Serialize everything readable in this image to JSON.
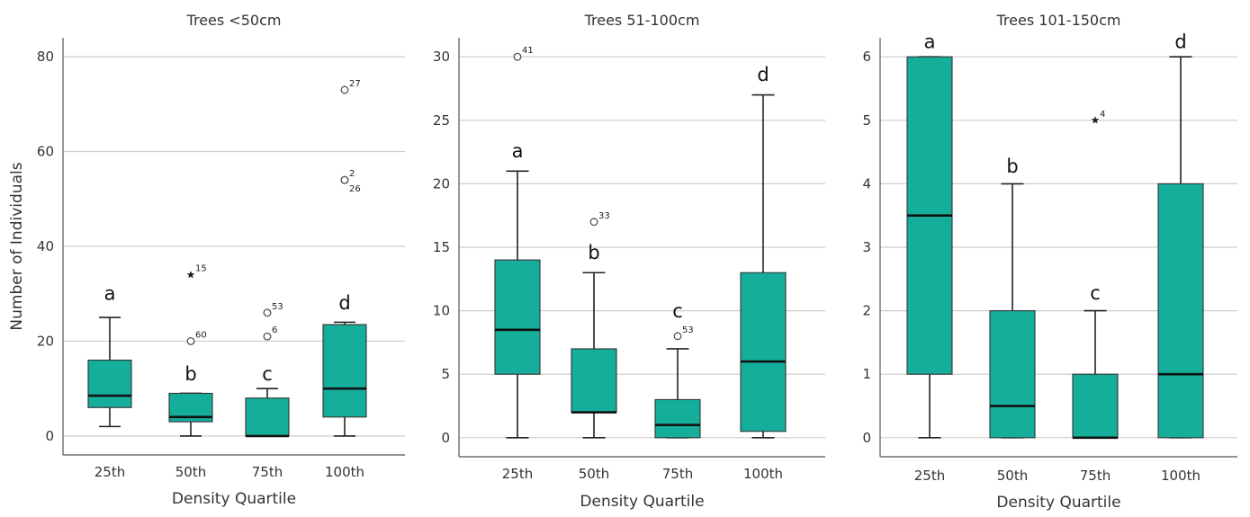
{
  "colors": {
    "box_fill": "#14ae9a",
    "grid": "#cccccc",
    "axis": "#555555"
  },
  "chart_data": [
    {
      "type": "box",
      "title": "Trees <50cm",
      "xlabel": "Density Quartile",
      "ylabel": "Number of Individuals",
      "categories": [
        "25th",
        "50th",
        "75th",
        "100th"
      ],
      "ylim": [
        -4,
        84
      ],
      "yticks": [
        0,
        20,
        40,
        60,
        80
      ],
      "grid": true,
      "boxes": [
        {
          "whisker_low": 2,
          "q1": 6,
          "median": 8.5,
          "q3": 16,
          "whisker_high": 25,
          "letter": "a",
          "letter_y": 28,
          "outliers": []
        },
        {
          "whisker_low": 0,
          "q1": 3,
          "median": 4,
          "q3": 9,
          "whisker_high": 9,
          "letter": "b",
          "letter_y": 11,
          "outliers": [
            {
              "value": 34,
              "label": "15",
              "symbol": "star"
            },
            {
              "value": 20,
              "label": "60",
              "symbol": "circle"
            }
          ]
        },
        {
          "whisker_low": 0,
          "q1": 0,
          "median": 0,
          "q3": 8,
          "whisker_high": 10,
          "letter": "c",
          "letter_y": 11,
          "outliers": [
            {
              "value": 26,
              "label": "53",
              "symbol": "circle"
            },
            {
              "value": 21,
              "label": "6",
              "symbol": "circle"
            }
          ]
        },
        {
          "whisker_low": 0,
          "q1": 4,
          "median": 10,
          "q3": 23.5,
          "whisker_high": 24,
          "letter": "d",
          "letter_y": 26,
          "outliers": [
            {
              "value": 73,
              "label": "27",
              "symbol": "circle"
            },
            {
              "value": 54,
              "label": "2",
              "symbol": "circle"
            },
            {
              "value": 54,
              "label": "26",
              "symbol": "circle",
              "label_below": true
            }
          ]
        }
      ]
    },
    {
      "type": "box",
      "title": "Trees 51-100cm",
      "xlabel": "Density Quartile",
      "ylabel": "",
      "categories": [
        "25th",
        "50th",
        "75th",
        "100th"
      ],
      "ylim": [
        -1.5,
        31.5
      ],
      "yticks": [
        0,
        5,
        10,
        15,
        20,
        25,
        30
      ],
      "grid": true,
      "boxes": [
        {
          "whisker_low": 0,
          "q1": 5,
          "median": 8.5,
          "q3": 14,
          "whisker_high": 21,
          "letter": "a",
          "letter_y": 21.8,
          "outliers": [
            {
              "value": 30,
              "label": "41",
              "symbol": "circle"
            }
          ]
        },
        {
          "whisker_low": 0,
          "q1": 2,
          "median": 2,
          "q3": 7,
          "whisker_high": 13,
          "letter": "b",
          "letter_y": 13.8,
          "outliers": [
            {
              "value": 17,
              "label": "33",
              "symbol": "circle"
            }
          ]
        },
        {
          "whisker_low": 0,
          "q1": 0,
          "median": 1,
          "q3": 3,
          "whisker_high": 7,
          "letter": "c",
          "letter_y": 9.2,
          "outliers": [
            {
              "value": 8,
              "label": "53",
              "symbol": "circle"
            }
          ]
        },
        {
          "whisker_low": 0,
          "q1": 0.5,
          "median": 6,
          "q3": 13,
          "whisker_high": 27,
          "letter": "d",
          "letter_y": 27.8,
          "outliers": []
        }
      ]
    },
    {
      "type": "box",
      "title": "Trees 101-150cm",
      "xlabel": "Density Quartile",
      "ylabel": "",
      "categories": [
        "25th",
        "50th",
        "75th",
        "100th"
      ],
      "ylim": [
        -0.3,
        6.3
      ],
      "yticks": [
        0,
        1,
        2,
        3,
        4,
        5,
        6
      ],
      "grid": true,
      "boxes": [
        {
          "whisker_low": 0,
          "q1": 1,
          "median": 3.5,
          "q3": 6,
          "whisker_high": 6,
          "letter": "a",
          "letter_y": 6.08,
          "outliers": []
        },
        {
          "whisker_low": 0,
          "q1": 0,
          "median": 0.5,
          "q3": 2,
          "whisker_high": 4,
          "letter": "b",
          "letter_y": 4.12,
          "outliers": []
        },
        {
          "whisker_low": 0,
          "q1": 0,
          "median": 0,
          "q3": 1,
          "whisker_high": 2,
          "letter": "c",
          "letter_y": 2.12,
          "outliers": [
            {
              "value": 5,
              "label": "4",
              "symbol": "star"
            }
          ]
        },
        {
          "whisker_low": 0,
          "q1": 0,
          "median": 1,
          "q3": 4,
          "whisker_high": 6,
          "letter": "d",
          "letter_y": 6.08,
          "outliers": []
        }
      ]
    }
  ]
}
